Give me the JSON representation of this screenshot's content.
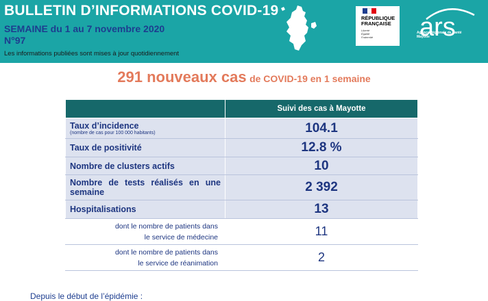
{
  "header": {
    "title": "BULLETIN D’INFORMATIONS COVID-19",
    "week": "SEMAINE du 1 au 7 novembre 2020",
    "issue": "N°97",
    "note": "Les informations publiées sont mises à jour quotidiennement",
    "colors": {
      "band": "#1ba5a6",
      "week_text": "#1d3d8f"
    }
  },
  "logos": {
    "republique": {
      "line1": "RÉPUBLIQUE",
      "line2": "FRANÇAISE",
      "motto1": "Liberté",
      "motto2": "Égalité",
      "motto3": "Fraternité"
    },
    "ars": {
      "wordmark": "ars",
      "sub1": "Agence Régionale de Santé",
      "sub2": "Mayotte"
    },
    "map_icon": "mayotte-map-icon"
  },
  "headline": {
    "big": "291 nouveaux cas",
    "rest": "de COVID-19 en 1 semaine",
    "color": "#e37a5b"
  },
  "table": {
    "column_title": "Suivi des cas à Mayotte",
    "rows": [
      {
        "label": "Taux d’incidence",
        "sublabel": "(nombre de cas pour 100 000 habitants)",
        "value": "104.1"
      },
      {
        "label": "Taux de positivité",
        "value": "12.8 %"
      },
      {
        "label": "Nombre de clusters actifs",
        "value": "10"
      },
      {
        "label": "Nombre de tests réalisés en une semaine",
        "value": "2 392"
      },
      {
        "label": "Hospitalisations",
        "value": "13"
      },
      {
        "label_line1": "dont le nombre de patients dans",
        "label_line2": "le service de médecine",
        "value": "11"
      },
      {
        "label_line1": "dont le nombre de patients dans",
        "label_line2": "le service de réanimation",
        "value": "2"
      }
    ],
    "colors": {
      "header_bg": "#16686a",
      "row_bg": "#dde2ef",
      "text": "#1d3580"
    }
  },
  "footer": {
    "since_start": "Depuis le début de l’épidémie :"
  }
}
